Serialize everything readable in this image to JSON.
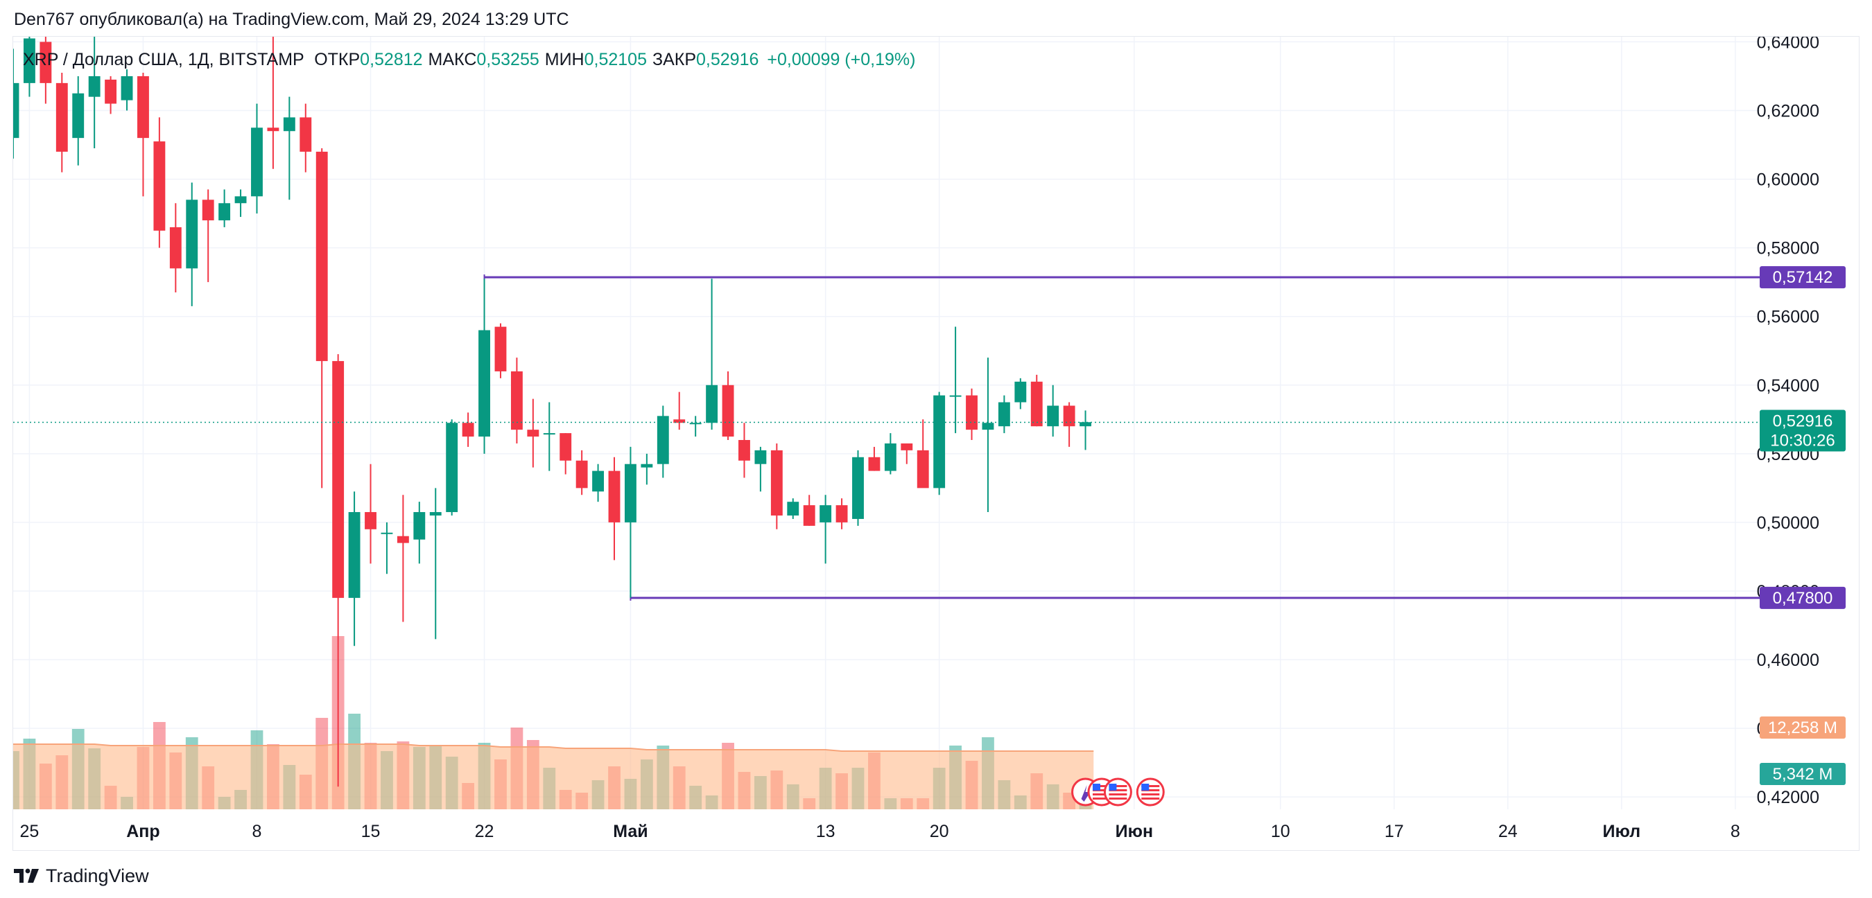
{
  "header": {
    "text": "Den767 опубликовал(а) на TradingView.com, Май 29, 2024 13:29 UTC"
  },
  "footer": {
    "brand": "TradingView",
    "logo_icon": "tradingview-logo-icon"
  },
  "colors": {
    "up": "#089981",
    "down": "#f23645",
    "level": "#673ab7",
    "grid": "#f0f3fa",
    "ma_fill": "#ffbb8c",
    "ma_line": "#f7a47a"
  },
  "chart_data": {
    "type": "candlestick",
    "symbol": "XRP / Доллар США, 1Д, BITSTAMP",
    "ohlc_labels": [
      {
        "label": "ОТКР",
        "value": "0,52812"
      },
      {
        "label": "МАКС",
        "value": "0,53255"
      },
      {
        "label": "МИН",
        "value": "0,52105"
      },
      {
        "label": "ЗАКР",
        "value": "0,52916"
      }
    ],
    "change": "+0,00099 (+0,19%)",
    "y_axis": {
      "ticks": [
        "0,64000",
        "0,62000",
        "0,60000",
        "0,58000",
        "0,56000",
        "0,54000",
        "0,52000",
        "0,50000",
        "0,48000",
        "0,46000",
        "0,44000",
        "0,42000"
      ],
      "tick_values": [
        0.64,
        0.62,
        0.6,
        0.58,
        0.56,
        0.54,
        0.52,
        0.5,
        0.48,
        0.46,
        0.44,
        0.42
      ],
      "range": [
        0.4164,
        0.6415
      ]
    },
    "x_axis": {
      "ticks": [
        {
          "label": "25",
          "day": -7
        },
        {
          "label": "Апр",
          "day": 0
        },
        {
          "label": "8",
          "day": 7
        },
        {
          "label": "15",
          "day": 14
        },
        {
          "label": "22",
          "day": 21
        },
        {
          "label": "Май",
          "day": 30
        },
        {
          "label": "13",
          "day": 42
        },
        {
          "label": "20",
          "day": 49
        },
        {
          "label": "Июн",
          "day": 61
        },
        {
          "label": "10",
          "day": 70
        },
        {
          "label": "17",
          "day": 77
        },
        {
          "label": "24",
          "day": 84
        },
        {
          "label": "Июл",
          "day": 91
        },
        {
          "label": "8",
          "day": 98
        }
      ],
      "bold_labels": [
        "Апр",
        "Май",
        "Июн",
        "Июл"
      ],
      "range_days": [
        -8,
        99.5
      ]
    },
    "candles": [
      {
        "date": "2024-03-24",
        "o": 0.612,
        "h": 0.638,
        "l": 0.606,
        "c": 0.628
      },
      {
        "date": "2024-03-25",
        "o": 0.628,
        "h": 0.652,
        "l": 0.624,
        "c": 0.641
      },
      {
        "date": "2024-03-26",
        "o": 0.64,
        "h": 0.645,
        "l": 0.622,
        "c": 0.628
      },
      {
        "date": "2024-03-27",
        "o": 0.628,
        "h": 0.631,
        "l": 0.602,
        "c": 0.608
      },
      {
        "date": "2024-03-28",
        "o": 0.612,
        "h": 0.63,
        "l": 0.604,
        "c": 0.625
      },
      {
        "date": "2024-03-29",
        "o": 0.624,
        "h": 0.647,
        "l": 0.609,
        "c": 0.63
      },
      {
        "date": "2024-03-30",
        "o": 0.629,
        "h": 0.63,
        "l": 0.619,
        "c": 0.622
      },
      {
        "date": "2024-03-31",
        "o": 0.623,
        "h": 0.632,
        "l": 0.62,
        "c": 0.63
      },
      {
        "date": "2024-04-01",
        "o": 0.63,
        "h": 0.631,
        "l": 0.595,
        "c": 0.612
      },
      {
        "date": "2024-04-02",
        "o": 0.611,
        "h": 0.618,
        "l": 0.58,
        "c": 0.585
      },
      {
        "date": "2024-04-03",
        "o": 0.586,
        "h": 0.593,
        "l": 0.567,
        "c": 0.574
      },
      {
        "date": "2024-04-04",
        "o": 0.574,
        "h": 0.599,
        "l": 0.563,
        "c": 0.594
      },
      {
        "date": "2024-04-05",
        "o": 0.594,
        "h": 0.597,
        "l": 0.57,
        "c": 0.588
      },
      {
        "date": "2024-04-06",
        "o": 0.588,
        "h": 0.597,
        "l": 0.586,
        "c": 0.593
      },
      {
        "date": "2024-04-07",
        "o": 0.593,
        "h": 0.597,
        "l": 0.589,
        "c": 0.595
      },
      {
        "date": "2024-04-08",
        "o": 0.595,
        "h": 0.622,
        "l": 0.59,
        "c": 0.615
      },
      {
        "date": "2024-04-09",
        "o": 0.615,
        "h": 0.645,
        "l": 0.603,
        "c": 0.614
      },
      {
        "date": "2024-04-10",
        "o": 0.614,
        "h": 0.624,
        "l": 0.594,
        "c": 0.618
      },
      {
        "date": "2024-04-11",
        "o": 0.618,
        "h": 0.622,
        "l": 0.602,
        "c": 0.608
      },
      {
        "date": "2024-04-12",
        "o": 0.608,
        "h": 0.609,
        "l": 0.51,
        "c": 0.547
      },
      {
        "date": "2024-04-13",
        "o": 0.547,
        "h": 0.549,
        "l": 0.423,
        "c": 0.478
      },
      {
        "date": "2024-04-14",
        "o": 0.478,
        "h": 0.509,
        "l": 0.464,
        "c": 0.503
      },
      {
        "date": "2024-04-15",
        "o": 0.503,
        "h": 0.517,
        "l": 0.488,
        "c": 0.498
      },
      {
        "date": "2024-04-16",
        "o": 0.497,
        "h": 0.5,
        "l": 0.485,
        "c": 0.497
      },
      {
        "date": "2024-04-17",
        "o": 0.496,
        "h": 0.508,
        "l": 0.471,
        "c": 0.494
      },
      {
        "date": "2024-04-18",
        "o": 0.495,
        "h": 0.506,
        "l": 0.488,
        "c": 0.503
      },
      {
        "date": "2024-04-19",
        "o": 0.502,
        "h": 0.51,
        "l": 0.466,
        "c": 0.503
      },
      {
        "date": "2024-04-20",
        "o": 0.503,
        "h": 0.53,
        "l": 0.502,
        "c": 0.529
      },
      {
        "date": "2024-04-21",
        "o": 0.529,
        "h": 0.532,
        "l": 0.522,
        "c": 0.525
      },
      {
        "date": "2024-04-22",
        "o": 0.525,
        "h": 0.571,
        "l": 0.52,
        "c": 0.556
      },
      {
        "date": "2024-04-23",
        "o": 0.557,
        "h": 0.558,
        "l": 0.542,
        "c": 0.544
      },
      {
        "date": "2024-04-24",
        "o": 0.544,
        "h": 0.548,
        "l": 0.523,
        "c": 0.527
      },
      {
        "date": "2024-04-25",
        "o": 0.527,
        "h": 0.536,
        "l": 0.516,
        "c": 0.525
      },
      {
        "date": "2024-04-26",
        "o": 0.526,
        "h": 0.535,
        "l": 0.515,
        "c": 0.526
      },
      {
        "date": "2024-04-27",
        "o": 0.526,
        "h": 0.526,
        "l": 0.514,
        "c": 0.518
      },
      {
        "date": "2024-04-28",
        "o": 0.518,
        "h": 0.521,
        "l": 0.508,
        "c": 0.51
      },
      {
        "date": "2024-04-29",
        "o": 0.509,
        "h": 0.517,
        "l": 0.506,
        "c": 0.515
      },
      {
        "date": "2024-04-30",
        "o": 0.515,
        "h": 0.519,
        "l": 0.489,
        "c": 0.5
      },
      {
        "date": "2024-05-01",
        "o": 0.5,
        "h": 0.522,
        "l": 0.478,
        "c": 0.517
      },
      {
        "date": "2024-05-02",
        "o": 0.516,
        "h": 0.52,
        "l": 0.511,
        "c": 0.517
      },
      {
        "date": "2024-05-03",
        "o": 0.517,
        "h": 0.534,
        "l": 0.513,
        "c": 0.531
      },
      {
        "date": "2024-05-04",
        "o": 0.53,
        "h": 0.538,
        "l": 0.527,
        "c": 0.529
      },
      {
        "date": "2024-05-05",
        "o": 0.529,
        "h": 0.531,
        "l": 0.525,
        "c": 0.529
      },
      {
        "date": "2024-05-06",
        "o": 0.529,
        "h": 0.571,
        "l": 0.527,
        "c": 0.54
      },
      {
        "date": "2024-05-07",
        "o": 0.54,
        "h": 0.544,
        "l": 0.524,
        "c": 0.525
      },
      {
        "date": "2024-05-08",
        "o": 0.524,
        "h": 0.529,
        "l": 0.513,
        "c": 0.518
      },
      {
        "date": "2024-05-09",
        "o": 0.517,
        "h": 0.522,
        "l": 0.509,
        "c": 0.521
      },
      {
        "date": "2024-05-10",
        "o": 0.521,
        "h": 0.523,
        "l": 0.498,
        "c": 0.502
      },
      {
        "date": "2024-05-11",
        "o": 0.502,
        "h": 0.507,
        "l": 0.501,
        "c": 0.506
      },
      {
        "date": "2024-05-12",
        "o": 0.505,
        "h": 0.508,
        "l": 0.499,
        "c": 0.499
      },
      {
        "date": "2024-05-13",
        "o": 0.5,
        "h": 0.508,
        "l": 0.488,
        "c": 0.505
      },
      {
        "date": "2024-05-14",
        "o": 0.505,
        "h": 0.507,
        "l": 0.498,
        "c": 0.5
      },
      {
        "date": "2024-05-15",
        "o": 0.501,
        "h": 0.521,
        "l": 0.499,
        "c": 0.519
      },
      {
        "date": "2024-05-16",
        "o": 0.519,
        "h": 0.522,
        "l": 0.515,
        "c": 0.515
      },
      {
        "date": "2024-05-17",
        "o": 0.515,
        "h": 0.526,
        "l": 0.514,
        "c": 0.523
      },
      {
        "date": "2024-05-18",
        "o": 0.523,
        "h": 0.523,
        "l": 0.517,
        "c": 0.521
      },
      {
        "date": "2024-05-19",
        "o": 0.521,
        "h": 0.53,
        "l": 0.511,
        "c": 0.51
      },
      {
        "date": "2024-05-20",
        "o": 0.51,
        "h": 0.538,
        "l": 0.508,
        "c": 0.537
      },
      {
        "date": "2024-05-21",
        "o": 0.537,
        "h": 0.557,
        "l": 0.526,
        "c": 0.537
      },
      {
        "date": "2024-05-22",
        "o": 0.537,
        "h": 0.539,
        "l": 0.524,
        "c": 0.527
      },
      {
        "date": "2024-05-23",
        "o": 0.527,
        "h": 0.548,
        "l": 0.503,
        "c": 0.529
      },
      {
        "date": "2024-05-24",
        "o": 0.528,
        "h": 0.537,
        "l": 0.526,
        "c": 0.535
      },
      {
        "date": "2024-05-25",
        "o": 0.535,
        "h": 0.542,
        "l": 0.533,
        "c": 0.541
      },
      {
        "date": "2024-05-26",
        "o": 0.541,
        "h": 0.543,
        "l": 0.528,
        "c": 0.528
      },
      {
        "date": "2024-05-27",
        "o": 0.528,
        "h": 0.54,
        "l": 0.525,
        "c": 0.534
      },
      {
        "date": "2024-05-28",
        "o": 0.534,
        "h": 0.535,
        "l": 0.522,
        "c": 0.528
      },
      {
        "date": "2024-05-29",
        "o": 0.528,
        "h": 0.5326,
        "l": 0.5211,
        "c": 0.5292
      }
    ],
    "volume": {
      "values": [
        0.42,
        0.51,
        0.33,
        0.39,
        0.58,
        0.44,
        0.17,
        0.09,
        0.45,
        0.63,
        0.41,
        0.52,
        0.31,
        0.09,
        0.14,
        0.57,
        0.47,
        0.32,
        0.25,
        0.66,
        1.25,
        0.69,
        0.48,
        0.42,
        0.49,
        0.45,
        0.46,
        0.38,
        0.19,
        0.48,
        0.36,
        0.59,
        0.5,
        0.3,
        0.14,
        0.12,
        0.21,
        0.31,
        0.22,
        0.36,
        0.46,
        0.31,
        0.17,
        0.1,
        0.48,
        0.27,
        0.24,
        0.28,
        0.18,
        0.08,
        0.3,
        0.26,
        0.3,
        0.41,
        0.08,
        0.08,
        0.08,
        0.3,
        0.46,
        0.35,
        0.52,
        0.21,
        0.1,
        0.26,
        0.18,
        0.12,
        0.11
      ],
      "ma_values": [
        0.47,
        0.47,
        0.47,
        0.47,
        0.47,
        0.47,
        0.46,
        0.46,
        0.46,
        0.46,
        0.46,
        0.46,
        0.46,
        0.46,
        0.46,
        0.46,
        0.46,
        0.46,
        0.46,
        0.46,
        0.47,
        0.47,
        0.47,
        0.47,
        0.47,
        0.46,
        0.46,
        0.46,
        0.46,
        0.46,
        0.45,
        0.45,
        0.45,
        0.45,
        0.44,
        0.44,
        0.44,
        0.44,
        0.44,
        0.43,
        0.43,
        0.43,
        0.43,
        0.43,
        0.43,
        0.43,
        0.43,
        0.43,
        0.43,
        0.43,
        0.43,
        0.42,
        0.42,
        0.42,
        0.42,
        0.42,
        0.42,
        0.42,
        0.42,
        0.42,
        0.42,
        0.42,
        0.42,
        0.42,
        0.42,
        0.42,
        0.42
      ],
      "ma_label": "12,258 M",
      "last_label": "5,342 M"
    },
    "levels": [
      {
        "value": 0.57142,
        "label": "0,57142",
        "start_date": "2024-04-22"
      },
      {
        "value": 0.478,
        "label": "0,47800",
        "start_date": "2024-05-01"
      }
    ],
    "last_price": {
      "value": 0.52916,
      "label": "0,52916",
      "countdown": "10:30:26"
    },
    "event_icons": [
      {
        "date": "2024-05-29",
        "icon": "earnings-flag-icon"
      },
      {
        "date": "2024-05-30",
        "icon": "us-flag-icon"
      },
      {
        "date": "2024-05-31",
        "icon": "us-flag-icon"
      },
      {
        "date": "2024-06-02",
        "icon": "us-flag-icon"
      }
    ],
    "grid": true
  }
}
